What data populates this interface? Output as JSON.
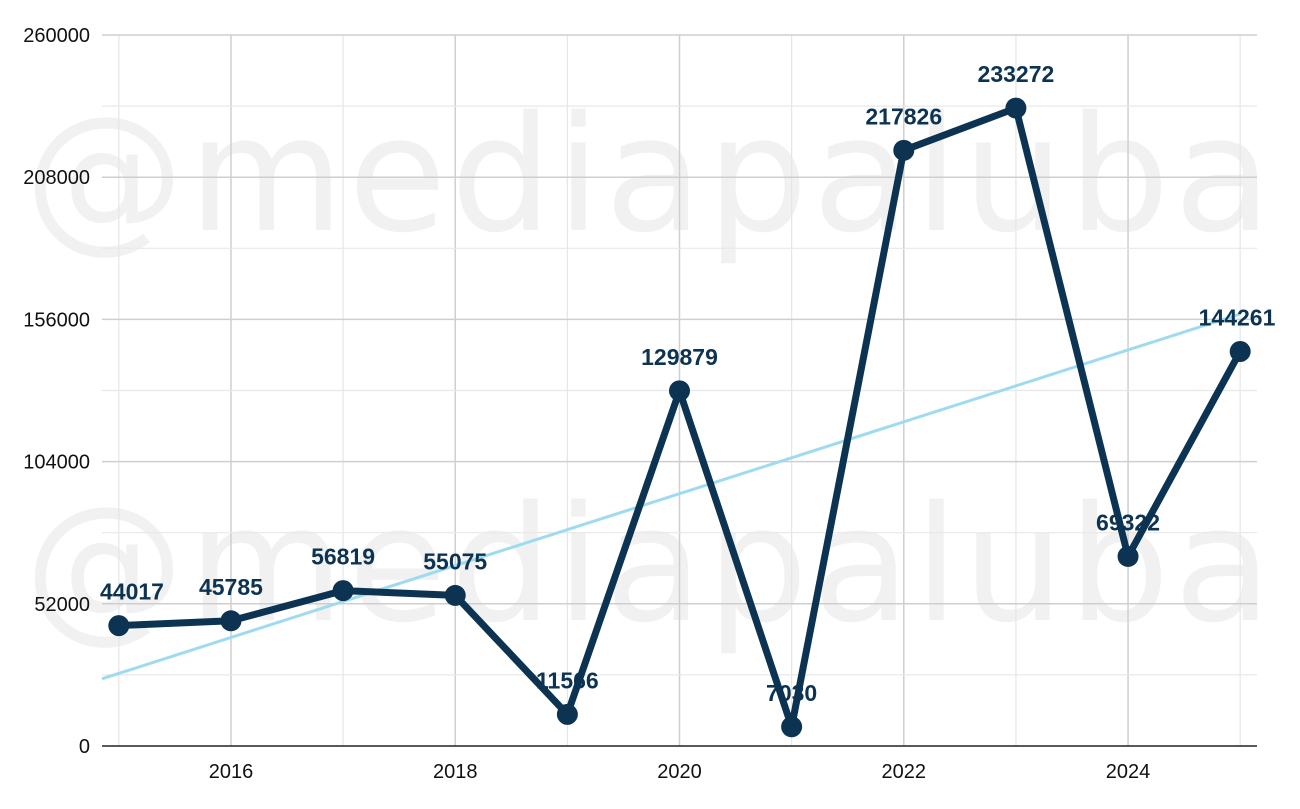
{
  "watermark": "@mediapaluba",
  "colors": {
    "series": "#0d3352",
    "trend": "#9fdbef",
    "grid": "#d4d4d4",
    "axis": "#222222"
  },
  "chart_data": {
    "type": "line",
    "x": [
      2015,
      2016,
      2017,
      2018,
      2019,
      2020,
      2021,
      2022,
      2023,
      2024,
      2025
    ],
    "series": [
      {
        "values": [
          44017,
          45785,
          56819,
          55075,
          11566,
          129879,
          7030,
          217826,
          233272,
          69322,
          144261
        ]
      }
    ],
    "data_labels": [
      "44017",
      "45785",
      "56819",
      "55075",
      "11566",
      "129879",
      "7030",
      "217826",
      "233272",
      "69322",
      "144261"
    ],
    "trendline": {
      "type": "linear"
    },
    "xlim": [
      2014.85,
      2025.15
    ],
    "ylim": [
      0,
      260000
    ],
    "x_ticks": [
      2016,
      2018,
      2020,
      2022,
      2024
    ],
    "x_tick_labels": [
      "2016",
      "2018",
      "2020",
      "2022",
      "2024"
    ],
    "y_ticks": [
      0,
      52000,
      104000,
      156000,
      208000,
      260000
    ],
    "y_tick_labels": [
      "0",
      "52000",
      "104000",
      "156000",
      "208000",
      "260000"
    ],
    "grid": true,
    "title": "",
    "xlabel": "",
    "ylabel": ""
  }
}
